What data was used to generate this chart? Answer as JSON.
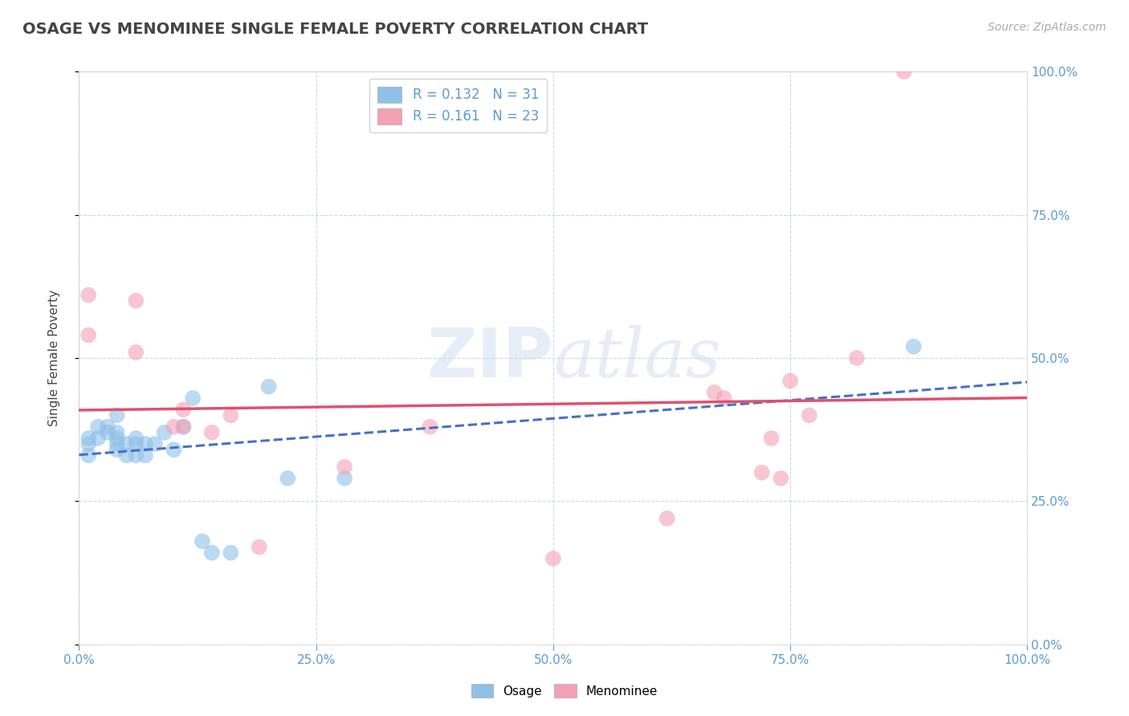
{
  "title": "OSAGE VS MENOMINEE SINGLE FEMALE POVERTY CORRELATION CHART",
  "source": "Source: ZipAtlas.com",
  "ylabel": "Single Female Poverty",
  "xlim": [
    0,
    1.0
  ],
  "ylim": [
    0,
    1.0
  ],
  "xticks": [
    0,
    0.25,
    0.5,
    0.75,
    1.0
  ],
  "yticks": [
    0,
    0.25,
    0.5,
    0.75,
    1.0
  ],
  "xticklabels": [
    "0.0%",
    "25.0%",
    "50.0%",
    "75.0%",
    "100.0%"
  ],
  "yticklabels": [
    "0.0%",
    "25.0%",
    "50.0%",
    "75.0%",
    "100.0%"
  ],
  "watermark": "ZIPatlas",
  "legend_r1": "R = 0.132",
  "legend_n1": "N = 31",
  "legend_r2": "R = 0.161",
  "legend_n2": "N = 23",
  "osage_color": "#8ec0e8",
  "menominee_color": "#f4a0b5",
  "osage_line_color": "#4472c4",
  "menominee_line_color": "#e05070",
  "background_color": "#ffffff",
  "grid_color": "#c8d8e8",
  "title_color": "#444444",
  "tick_color": "#5b9bd5",
  "osage_x": [
    0.01,
    0.01,
    0.01,
    0.02,
    0.02,
    0.03,
    0.03,
    0.04,
    0.04,
    0.04,
    0.04,
    0.04,
    0.05,
    0.05,
    0.06,
    0.06,
    0.06,
    0.07,
    0.07,
    0.08,
    0.09,
    0.1,
    0.11,
    0.12,
    0.13,
    0.14,
    0.16,
    0.2,
    0.22,
    0.28,
    0.88
  ],
  "osage_y": [
    0.33,
    0.35,
    0.36,
    0.36,
    0.38,
    0.37,
    0.38,
    0.35,
    0.36,
    0.37,
    0.4,
    0.34,
    0.33,
    0.35,
    0.33,
    0.35,
    0.36,
    0.33,
    0.35,
    0.35,
    0.37,
    0.34,
    0.38,
    0.43,
    0.18,
    0.16,
    0.16,
    0.45,
    0.29,
    0.29,
    0.52
  ],
  "menominee_x": [
    0.01,
    0.01,
    0.06,
    0.06,
    0.1,
    0.11,
    0.11,
    0.14,
    0.16,
    0.19,
    0.28,
    0.37,
    0.5,
    0.62,
    0.67,
    0.68,
    0.72,
    0.73,
    0.74,
    0.75,
    0.77,
    0.82,
    0.87
  ],
  "menominee_y": [
    0.54,
    0.61,
    0.51,
    0.6,
    0.38,
    0.38,
    0.41,
    0.37,
    0.4,
    0.17,
    0.31,
    0.38,
    0.15,
    0.22,
    0.44,
    0.43,
    0.3,
    0.36,
    0.29,
    0.46,
    0.4,
    0.5,
    1.0
  ]
}
